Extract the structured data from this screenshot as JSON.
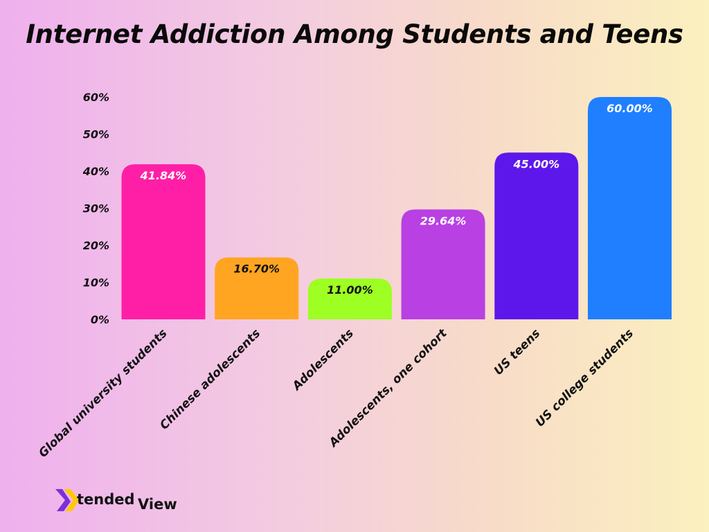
{
  "chart_data": {
    "type": "bar",
    "title": "Internet Addiction Among Students and Teens",
    "xlabel": "",
    "ylabel": "",
    "categories": [
      "Global university students",
      "Chinese adolescents",
      "Adolescents",
      "Adolescents, one cohort",
      "US teens",
      "US college students"
    ],
    "values": [
      41.84,
      16.7,
      11.0,
      29.64,
      45.0,
      60.0
    ],
    "value_labels": [
      "41.84%",
      "16.70%",
      "11.00%",
      "29.64%",
      "45.00%",
      "60.00%"
    ],
    "colors": [
      "#ff1fa6",
      "#ffa522",
      "#9dff22",
      "#b940e3",
      "#5e17eb",
      "#1f7fff"
    ],
    "label_colors": [
      "#ffffff",
      "#111111",
      "#111111",
      "#ffffff",
      "#ffffff",
      "#ffffff"
    ],
    "ylim": [
      0,
      60
    ],
    "yticks": [
      0,
      10,
      20,
      30,
      40,
      50,
      60
    ],
    "ytick_labels": [
      "0%",
      "10%",
      "20%",
      "30%",
      "40%",
      "50%",
      "60%"
    ],
    "grid": false,
    "legend": "none"
  },
  "branding": {
    "logo_letter": "X",
    "logo_text_a": "tended",
    "logo_text_b": "View",
    "logo_colors": [
      "#ffc800",
      "#7b2fd9"
    ]
  }
}
